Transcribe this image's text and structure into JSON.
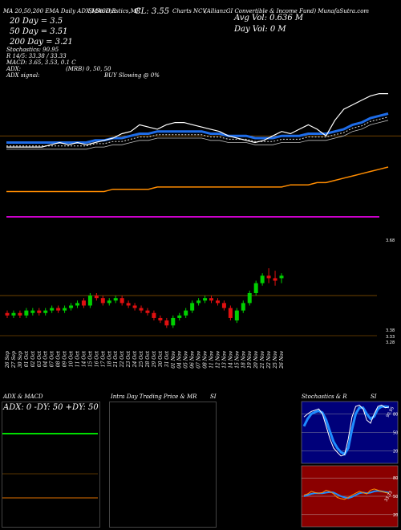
{
  "header": {
    "left_line": "MA 20,50,200 EMA Daily ADX,MACD,R",
    "mid_line": "SI,Stochastics,MR",
    "cl": "CL: 3.55",
    "charts_label": "Charts NCV",
    "company": "(AllianzGI Convertible & Income Fund) MunafaSutra.com",
    "ma20": "20 Day = 3.5",
    "ma50": "50 Day = 3.51",
    "ma200": "200 Day = 3.21",
    "avg_vol": "Avg Vol: 0.636 M",
    "day_vol": "Day Vol: 0 M",
    "stochastics": "Stochastics: 90.95",
    "r_line": "R 14/5: 33.38 / 33.33",
    "macd": "MACD: 3.65, 3.53, 0.1 C",
    "adx": "ADX:",
    "adx_signal": "ADX signal:",
    "mrb": "(MRB) 0, 50, 50",
    "buy": "BUY Slowing @ 0%"
  },
  "colors": {
    "price_line": "#ffffff",
    "ema_line": "#1e6ce8",
    "ma200_line": "#ff8c00",
    "ma_dash": "#dddddd",
    "up_candle": "#00d000",
    "down_candle": "#e01010",
    "mrb_line": "#cc00cc",
    "grid": "#b06a00",
    "stoch_bg": "#00007a",
    "rsi_bg": "#8b0000"
  },
  "chart_data": [
    {
      "type": "line",
      "title": "",
      "x": [
        "26 Sep",
        "27 Sep",
        "30 Sep",
        "01 Oct",
        "02 Oct",
        "03 Oct",
        "04 Oct",
        "07 Oct",
        "08 Oct",
        "09 Oct",
        "10 Oct",
        "11 Oct",
        "14 Oct",
        "15 Oct",
        "16 Oct",
        "17 Oct",
        "18 Oct",
        "21 Oct",
        "22 Oct",
        "23 Oct",
        "24 Oct",
        "25 Oct",
        "28 Oct",
        "29 Oct",
        "30 Oct",
        "31 Oct",
        "01 Nov",
        "04 Nov",
        "05 Nov",
        "06 Nov",
        "07 Nov",
        "08 Nov",
        "11 Nov",
        "12 Nov",
        "13 Nov",
        "14 Nov",
        "15 Nov",
        "18 Nov",
        "19 Nov",
        "20 Nov",
        "21 Nov",
        "22 Nov",
        "25 Nov",
        "26 Nov"
      ],
      "series": [
        {
          "values": [
            3.45,
            3.45,
            3.45,
            3.45,
            3.45,
            3.46,
            3.47,
            3.46,
            3.47,
            3.46,
            3.47,
            3.48,
            3.49,
            3.51,
            3.52,
            3.55,
            3.54,
            3.53,
            3.55,
            3.56,
            3.56,
            3.55,
            3.54,
            3.53,
            3.52,
            3.5,
            3.49,
            3.48,
            3.47,
            3.48,
            3.5,
            3.52,
            3.51,
            3.53,
            3.55,
            3.53,
            3.5,
            3.57,
            3.62,
            3.64,
            3.66,
            3.68,
            3.69,
            3.69
          ]
        },
        {
          "values": [
            3.47,
            3.47,
            3.47,
            3.47,
            3.47,
            3.47,
            3.47,
            3.47,
            3.47,
            3.47,
            3.48,
            3.48,
            3.49,
            3.49,
            3.5,
            3.51,
            3.51,
            3.52,
            3.52,
            3.52,
            3.52,
            3.52,
            3.52,
            3.51,
            3.51,
            3.5,
            3.5,
            3.5,
            3.49,
            3.49,
            3.49,
            3.5,
            3.5,
            3.5,
            3.51,
            3.51,
            3.51,
            3.52,
            3.53,
            3.55,
            3.56,
            3.58,
            3.59,
            3.6
          ]
        },
        {
          "values": [
            3.25,
            3.25,
            3.25,
            3.25,
            3.25,
            3.25,
            3.25,
            3.25,
            3.25,
            3.25,
            3.25,
            3.25,
            3.26,
            3.26,
            3.26,
            3.26,
            3.26,
            3.27,
            3.27,
            3.27,
            3.27,
            3.27,
            3.27,
            3.27,
            3.27,
            3.27,
            3.27,
            3.27,
            3.27,
            3.27,
            3.27,
            3.27,
            3.28,
            3.28,
            3.28,
            3.29,
            3.29,
            3.3,
            3.31,
            3.32,
            3.33,
            3.34,
            3.35,
            3.36
          ]
        }
      ],
      "ylim": [
        3.1,
        3.75
      ]
    },
    {
      "type": "bar",
      "title": "",
      "categories": [
        "26 Sep",
        "27 Sep",
        "30 Sep",
        "01 Oct",
        "02 Oct",
        "03 Oct",
        "04 Oct",
        "07 Oct",
        "08 Oct",
        "09 Oct",
        "10 Oct",
        "11 Oct",
        "14 Oct",
        "15 Oct",
        "16 Oct",
        "17 Oct",
        "18 Oct",
        "21 Oct",
        "22 Oct",
        "23 Oct",
        "24 Oct",
        "25 Oct",
        "28 Oct",
        "29 Oct",
        "30 Oct",
        "31 Oct",
        "01 Nov",
        "04 Nov",
        "05 Nov",
        "06 Nov",
        "07 Nov",
        "08 Nov",
        "11 Nov",
        "12 Nov",
        "13 Nov",
        "14 Nov",
        "15 Nov",
        "18 Nov",
        "19 Nov",
        "20 Nov",
        "21 Nov",
        "22 Nov",
        "25 Nov",
        "26 Nov"
      ],
      "open": [
        3.43,
        3.42,
        3.43,
        3.42,
        3.43,
        3.44,
        3.43,
        3.44,
        3.45,
        3.44,
        3.45,
        3.46,
        3.48,
        3.46,
        3.5,
        3.49,
        3.47,
        3.48,
        3.49,
        3.47,
        3.46,
        3.45,
        3.44,
        3.43,
        3.41,
        3.4,
        3.38,
        3.41,
        3.42,
        3.44,
        3.47,
        3.48,
        3.49,
        3.48,
        3.47,
        3.45,
        3.4,
        3.44,
        3.47,
        3.51,
        3.55,
        3.58,
        3.57,
        3.57
      ],
      "close": [
        3.42,
        3.43,
        3.42,
        3.44,
        3.44,
        3.43,
        3.44,
        3.45,
        3.44,
        3.45,
        3.46,
        3.47,
        3.46,
        3.5,
        3.49,
        3.47,
        3.48,
        3.49,
        3.47,
        3.46,
        3.45,
        3.44,
        3.43,
        3.41,
        3.4,
        3.38,
        3.41,
        3.42,
        3.44,
        3.47,
        3.48,
        3.49,
        3.48,
        3.47,
        3.45,
        3.41,
        3.44,
        3.47,
        3.51,
        3.55,
        3.58,
        3.57,
        3.56,
        3.58
      ],
      "high": [
        3.44,
        3.44,
        3.44,
        3.45,
        3.45,
        3.45,
        3.45,
        3.46,
        3.46,
        3.46,
        3.47,
        3.48,
        3.49,
        3.51,
        3.51,
        3.5,
        3.49,
        3.5,
        3.5,
        3.48,
        3.47,
        3.46,
        3.45,
        3.44,
        3.42,
        3.41,
        3.42,
        3.43,
        3.45,
        3.48,
        3.49,
        3.5,
        3.5,
        3.49,
        3.48,
        3.46,
        3.45,
        3.48,
        3.52,
        3.56,
        3.59,
        3.61,
        3.6,
        3.59
      ],
      "low": [
        3.41,
        3.41,
        3.41,
        3.41,
        3.42,
        3.42,
        3.42,
        3.43,
        3.43,
        3.43,
        3.44,
        3.45,
        3.45,
        3.45,
        3.48,
        3.46,
        3.46,
        3.47,
        3.46,
        3.45,
        3.44,
        3.43,
        3.42,
        3.4,
        3.39,
        3.37,
        3.37,
        3.4,
        3.41,
        3.43,
        3.46,
        3.47,
        3.47,
        3.46,
        3.44,
        3.4,
        3.39,
        3.43,
        3.46,
        3.5,
        3.54,
        3.55,
        3.54,
        3.55
      ],
      "price_labels": [
        "3.68",
        "3.38",
        "3.33",
        "3.28"
      ],
      "ylim": [
        3.3,
        3.72
      ]
    },
    {
      "type": "line",
      "title": "ADX & MACD",
      "series": [
        {
          "values": [
            50,
            50,
            50,
            50,
            50,
            50,
            50,
            50,
            50,
            50
          ]
        }
      ],
      "ylim": [
        0,
        100
      ]
    },
    {
      "type": "line",
      "title": "Stochastics & R",
      "series": [
        {
          "values": [
            75,
            80,
            84,
            86,
            88,
            80,
            60,
            40,
            25,
            18,
            12,
            14,
            40,
            75,
            92,
            94,
            88,
            70,
            65,
            80,
            92,
            94,
            90,
            91
          ]
        },
        {
          "values": [
            60,
            72,
            80,
            83,
            85,
            82,
            70,
            52,
            35,
            25,
            18,
            15,
            25,
            55,
            80,
            90,
            90,
            80,
            72,
            76,
            88,
            92,
            92,
            91
          ]
        }
      ],
      "ylim": [
        0,
        100
      ]
    },
    {
      "type": "line",
      "title": "SI",
      "series": [
        {
          "values": [
            52,
            54,
            58,
            56,
            55,
            56,
            60,
            58,
            54,
            48,
            46,
            45,
            48,
            52,
            55,
            58,
            56,
            54,
            60,
            62,
            60,
            58,
            56,
            55
          ]
        },
        {
          "values": [
            50,
            52,
            54,
            55,
            55,
            55,
            56,
            57,
            56,
            53,
            50,
            48,
            47,
            49,
            52,
            55,
            56,
            55,
            56,
            58,
            59,
            58,
            57,
            56
          ]
        }
      ],
      "ylim": [
        0,
        100
      ]
    },
    {
      "type": "line",
      "title": "",
      "series": [
        {
          "values": [
            80,
            80,
            80,
            80,
            80,
            80,
            80,
            80,
            80,
            80,
            80,
            80,
            80,
            80,
            80,
            80,
            80,
            80,
            80,
            80
          ]
        }
      ],
      "ylim": [
        0,
        100
      ]
    }
  ],
  "panels": {
    "adx_title": "ADX & MACD",
    "adx_inner": "ADX: 0  -DY: 50  +DY: 50",
    "intra_title": "Intra Day Trading Price & MR",
    "si_title": "SI",
    "stoch_title": "Stochastics & R",
    "stoch_ticks": [
      "80",
      "50",
      "20"
    ],
    "rsi_ticks": [
      "80",
      "50",
      "20"
    ],
    "stoch_val": "90.95",
    "rsi_val": "33.33"
  }
}
